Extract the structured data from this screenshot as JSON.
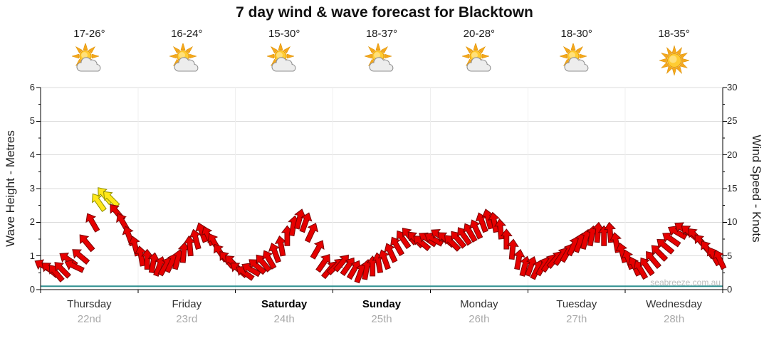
{
  "title": "7 day wind & wave forecast for Blacktown",
  "watermark": "seabreeze.com.au",
  "days": [
    {
      "name": "Thursday",
      "date": "22nd",
      "temp": "17-26°",
      "icon": "sun-cloud-icon",
      "weekend": false
    },
    {
      "name": "Friday",
      "date": "23rd",
      "temp": "16-24°",
      "icon": "sun-cloud-icon",
      "weekend": false
    },
    {
      "name": "Saturday",
      "date": "24th",
      "temp": "15-30°",
      "icon": "sun-cloud-icon",
      "weekend": true
    },
    {
      "name": "Sunday",
      "date": "25th",
      "temp": "18-37°",
      "icon": "sun-cloud-icon",
      "weekend": true
    },
    {
      "name": "Monday",
      "date": "26th",
      "temp": "20-28°",
      "icon": "sun-cloud-icon",
      "weekend": false
    },
    {
      "name": "Tuesday",
      "date": "27th",
      "temp": "18-30°",
      "icon": "sun-cloud-icon",
      "weekend": false
    },
    {
      "name": "Wednesday",
      "date": "28th",
      "temp": "18-35°",
      "icon": "sun-icon",
      "weekend": false
    }
  ],
  "axes": {
    "left_title": "Wave Height - Metres",
    "right_title": "Wind Speed - Knots",
    "left_ticks": [
      0,
      1,
      2,
      3,
      4,
      5,
      6
    ],
    "right_ticks": [
      0,
      5,
      10,
      15,
      20,
      25,
      30
    ],
    "left_range": [
      0,
      6
    ],
    "right_range": [
      0,
      30
    ]
  },
  "chart_data": {
    "type": "wind-arrows",
    "title": "7 day wind & wave forecast for Blacktown",
    "categories": [
      "Thursday 22nd",
      "Friday 23rd",
      "Saturday 24th",
      "Sunday 25th",
      "Monday 26th",
      "Tuesday 27th",
      "Wednesday 28th"
    ],
    "points_per_day": 16,
    "wind_ylim_knots": [
      0,
      30
    ],
    "wave_ylim_metres": [
      0,
      6
    ],
    "wave_height_metres_constant": 0.1,
    "arrow_color": "#E60000",
    "arrow_stroke": "#7A0000",
    "peak_arrow_color": "#FFE71A",
    "peak_arrow_stroke": "#8F8F00",
    "wave_line_color": "#2F8F8F",
    "series": [
      {
        "day": "Thursday",
        "knots": [
          3.5,
          3,
          2.5,
          3,
          4.5,
          3.5,
          5,
          7,
          10,
          13,
          14,
          13.5,
          11.5,
          10,
          8,
          6.5
        ],
        "dir_deg": [
          300,
          310,
          320,
          315,
          305,
          295,
          310,
          320,
          330,
          325,
          320,
          315,
          320,
          330,
          340,
          345
        ],
        "peak_indices": [
          9,
          10,
          11
        ]
      },
      {
        "day": "Friday",
        "knots": [
          5,
          4.5,
          4,
          3.5,
          3.5,
          4,
          4.5,
          5.5,
          6.5,
          7.5,
          8.5,
          8,
          7,
          5.5,
          4.5,
          4
        ],
        "dir_deg": [
          350,
          0,
          10,
          20,
          30,
          25,
          15,
          5,
          355,
          345,
          340,
          335,
          330,
          325,
          320,
          315
        ],
        "peak_indices": []
      },
      {
        "day": "Saturday",
        "knots": [
          3,
          2.5,
          3,
          3.5,
          4,
          4.5,
          5.5,
          6.5,
          8,
          9.5,
          10.5,
          10,
          8.5,
          6,
          4,
          3
        ],
        "dir_deg": [
          310,
          305,
          300,
          310,
          320,
          330,
          340,
          350,
          0,
          10,
          15,
          20,
          25,
          30,
          35,
          40
        ],
        "peak_indices": []
      },
      {
        "day": "Sunday",
        "knots": [
          3.5,
          4,
          3.5,
          3,
          2.5,
          3,
          3.5,
          4,
          4.5,
          5.5,
          6.5,
          7.5,
          8,
          7.5,
          7,
          7.5
        ],
        "dir_deg": [
          45,
          40,
          35,
          30,
          20,
          10,
          0,
          350,
          340,
          335,
          330,
          325,
          320,
          315,
          310,
          305
        ],
        "peak_indices": []
      },
      {
        "day": "Monday",
        "knots": [
          7.5,
          8,
          7.5,
          7,
          7.5,
          8,
          8.5,
          9,
          10,
          10.5,
          10,
          9,
          7.5,
          6,
          4.5,
          3.5
        ],
        "dir_deg": [
          300,
          305,
          310,
          315,
          320,
          325,
          330,
          335,
          340,
          345,
          350,
          355,
          0,
          5,
          10,
          15
        ],
        "peak_indices": []
      },
      {
        "day": "Tuesday",
        "knots": [
          3.5,
          3,
          3.5,
          4,
          4.5,
          5,
          5.5,
          6.5,
          7,
          7.5,
          8,
          8.5,
          8,
          8.5,
          7,
          5.5
        ],
        "dir_deg": [
          20,
          25,
          30,
          35,
          40,
          35,
          30,
          25,
          20,
          15,
          10,
          5,
          0,
          355,
          350,
          345
        ],
        "peak_indices": []
      },
      {
        "day": "Wednesday",
        "knots": [
          4.5,
          3.5,
          3,
          3.5,
          4.5,
          5.5,
          6.5,
          7.5,
          8.5,
          9,
          8.5,
          8,
          7,
          6,
          5,
          4.5
        ],
        "dir_deg": [
          340,
          335,
          330,
          325,
          320,
          315,
          310,
          305,
          300,
          305,
          310,
          315,
          320,
          325,
          330,
          335
        ],
        "peak_indices": []
      }
    ]
  }
}
